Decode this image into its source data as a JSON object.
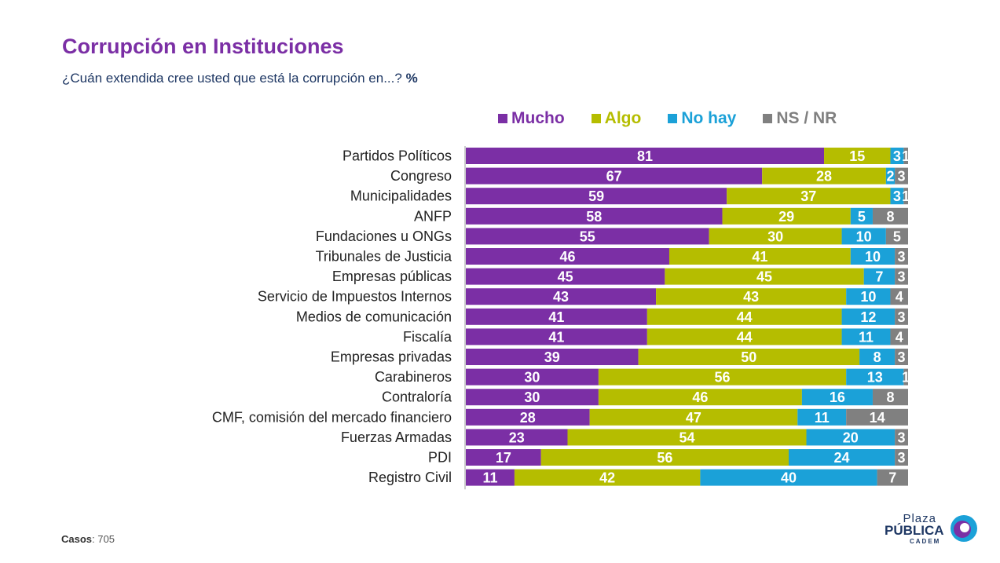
{
  "title": "Corrupción en Instituciones",
  "subtitle": "¿Cuán extendida cree usted que está la corrupción en...?",
  "subtitle_unit": "%",
  "footer": {
    "label": "Casos",
    "value": ": 705"
  },
  "logo": {
    "line1": "Plaza",
    "line2": "PÚBLICA",
    "line3": "CADEM"
  },
  "chart_data": {
    "type": "bar",
    "orientation": "horizontal",
    "stacked": true,
    "legend_position": "top",
    "categories": [
      "Partidos Políticos",
      "Congreso",
      "Municipalidades",
      "ANFP",
      "Fundaciones u ONGs",
      "Tribunales de Justicia",
      "Empresas públicas",
      "Servicio de Impuestos Internos",
      "Medios de comunicación",
      "Fiscalía",
      "Empresas privadas",
      "Carabineros",
      "Contraloría",
      "CMF, comisión del mercado financiero",
      "Fuerzas Armadas",
      "PDI",
      "Registro Civil"
    ],
    "series": [
      {
        "name": "Mucho",
        "color": "#7b2fa5",
        "values": [
          81,
          67,
          59,
          58,
          55,
          46,
          45,
          43,
          41,
          41,
          39,
          30,
          30,
          28,
          23,
          17,
          11
        ]
      },
      {
        "name": "Algo",
        "color": "#b5bd00",
        "values": [
          15,
          28,
          37,
          29,
          30,
          41,
          45,
          43,
          44,
          44,
          50,
          56,
          46,
          47,
          54,
          56,
          42
        ]
      },
      {
        "name": "No hay",
        "color": "#1ba1d8",
        "values": [
          3,
          2,
          3,
          5,
          10,
          10,
          7,
          10,
          12,
          11,
          8,
          13,
          16,
          11,
          20,
          24,
          40
        ]
      },
      {
        "name": "NS / NR",
        "color": "#808080",
        "values": [
          1,
          3,
          1,
          8,
          5,
          3,
          3,
          4,
          3,
          4,
          3,
          1,
          8,
          14,
          3,
          3,
          7
        ]
      }
    ],
    "xlim": [
      0,
      100
    ]
  }
}
